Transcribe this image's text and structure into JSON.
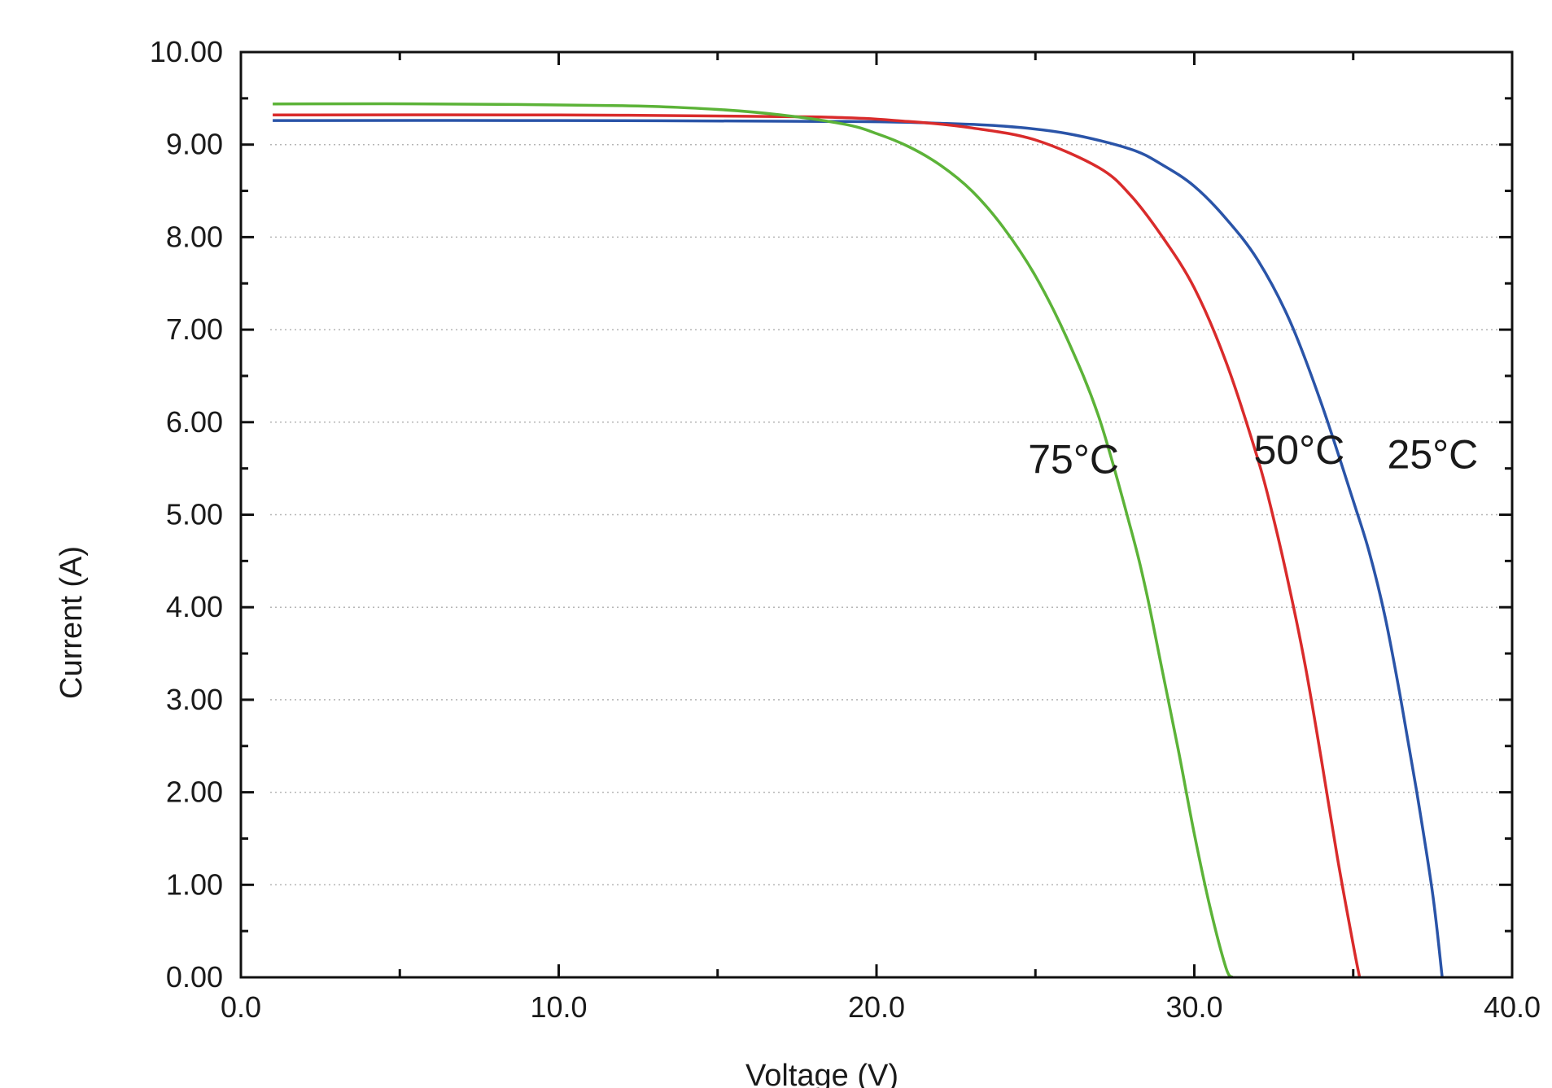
{
  "chart_data": {
    "type": "line",
    "xlabel": "Voltage (V)",
    "ylabel": "Current (A)",
    "xlim": [
      0,
      40
    ],
    "ylim": [
      0,
      10
    ],
    "x_ticks": [
      "0.0",
      "10.0",
      "20.0",
      "30.0",
      "40.0"
    ],
    "y_ticks": [
      "0.00",
      "1.00",
      "2.00",
      "3.00",
      "4.00",
      "5.00",
      "6.00",
      "7.00",
      "8.00",
      "9.00",
      "10.00"
    ],
    "grid": "horizontal dotted",
    "series": [
      {
        "name": "25°C",
        "color": "#2a54a8",
        "x": [
          1,
          10,
          19,
          22,
          24,
          26,
          28,
          29,
          30,
          31,
          32,
          33,
          34,
          35,
          35.5,
          36,
          36.5,
          37,
          37.5,
          37.8
        ],
        "y": [
          9.26,
          9.26,
          9.25,
          9.23,
          9.2,
          9.12,
          8.95,
          8.78,
          8.55,
          8.2,
          7.75,
          7.1,
          6.2,
          5.15,
          4.6,
          3.9,
          3.0,
          2.0,
          0.9,
          0.0
        ]
      },
      {
        "name": "50°C",
        "color": "#d92b2b",
        "x": [
          1,
          10,
          18,
          21,
          23,
          25,
          27,
          28,
          29,
          30,
          31,
          32,
          32.5,
          33,
          33.5,
          34,
          34.5,
          35,
          35.2
        ],
        "y": [
          9.32,
          9.32,
          9.3,
          9.25,
          9.18,
          9.05,
          8.75,
          8.45,
          8.0,
          7.45,
          6.65,
          5.6,
          4.95,
          4.2,
          3.35,
          2.35,
          1.3,
          0.35,
          0.0
        ]
      },
      {
        "name": "75°C",
        "color": "#5cb338",
        "x": [
          1,
          6,
          12,
          15,
          17,
          19,
          20,
          21,
          22,
          23,
          24,
          25,
          26,
          27,
          28,
          28.5,
          29,
          29.5,
          30,
          30.5,
          31,
          31.2
        ],
        "y": [
          9.44,
          9.44,
          9.42,
          9.38,
          9.32,
          9.22,
          9.12,
          8.98,
          8.78,
          8.5,
          8.1,
          7.58,
          6.9,
          6.05,
          4.85,
          4.15,
          3.3,
          2.45,
          1.55,
          0.75,
          0.1,
          0.0
        ]
      }
    ],
    "annotations": [
      {
        "text": "75°C",
        "series": "75°C",
        "at": [
          26.2,
          5.45
        ]
      },
      {
        "text": "50°C",
        "series": "50°C",
        "at": [
          33.3,
          5.55
        ]
      },
      {
        "text": "25°C",
        "series": "25°C",
        "at": [
          37.5,
          5.5
        ]
      }
    ]
  }
}
